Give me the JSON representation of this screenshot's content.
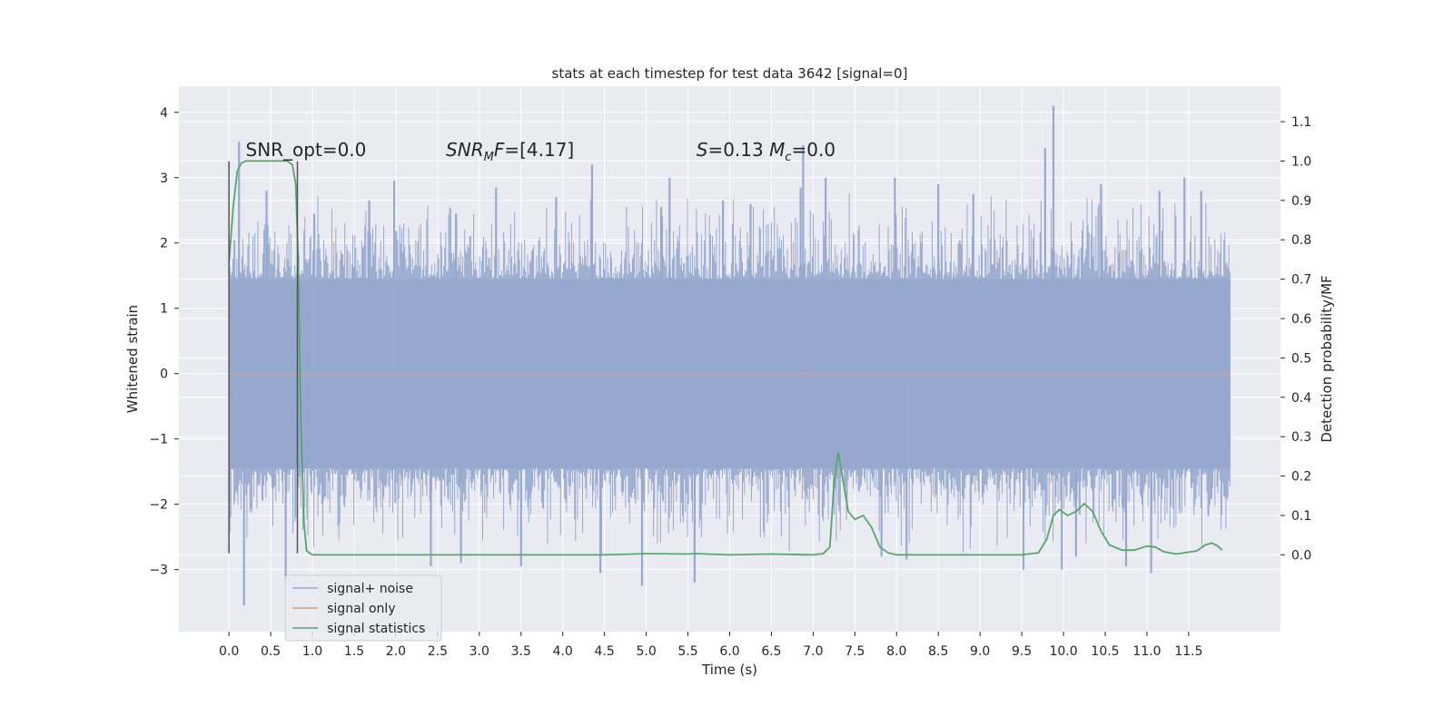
{
  "chart_data": {
    "type": "line",
    "title": "stats at each timestep for test data 3642 [signal=0]",
    "xlabel": "Time (s)",
    "ylabel_left": "Whitened strain",
    "ylabel_right": "Detection probability/MF",
    "xlim": [
      -0.6,
      12.6
    ],
    "ylim_left": [
      -3.95,
      4.4
    ],
    "ylim_right": [
      -0.195,
      1.19
    ],
    "x_ticks": [
      0.0,
      0.5,
      1.0,
      1.5,
      2.0,
      2.5,
      3.0,
      3.5,
      4.0,
      4.5,
      5.0,
      5.5,
      6.0,
      6.5,
      7.0,
      7.5,
      8.0,
      8.5,
      9.0,
      9.5,
      10.0,
      10.5,
      11.0,
      11.5
    ],
    "x_tick_labels": [
      "0.0",
      "0.5",
      "1.0",
      "1.5",
      "2.0",
      "2.5",
      "3.0",
      "3.5",
      "4.0",
      "4.5",
      "5.0",
      "5.5",
      "6.0",
      "6.5",
      "7.0",
      "7.5",
      "8.0",
      "8.5",
      "9.0",
      "9.5",
      "10.0",
      "10.5",
      "11.0",
      "11.5"
    ],
    "y_left_ticks": [
      -3,
      -2,
      -1,
      0,
      1,
      2,
      3,
      4
    ],
    "y_left_tick_labels": [
      "−3",
      "−2",
      "−1",
      "0",
      "1",
      "2",
      "3",
      "4"
    ],
    "y_right_ticks": [
      0.0,
      0.1,
      0.2,
      0.3,
      0.4,
      0.5,
      0.6,
      0.7,
      0.8,
      0.9,
      1.0,
      1.1
    ],
    "y_right_tick_labels": [
      "0.0",
      "0.1",
      "0.2",
      "0.3",
      "0.4",
      "0.5",
      "0.6",
      "0.7",
      "0.8",
      "0.9",
      "1.0",
      "1.1"
    ],
    "grid": true,
    "legend_position": "lower-left",
    "series": [
      {
        "name": "signal+ noise",
        "axis": "left",
        "color": "#97a9cf",
        "x_range": [
          0.0,
          12.0
        ],
        "envelope_abs": 1.45,
        "peaks": [
          [
            0.12,
            3.55
          ],
          [
            0.18,
            -3.55
          ],
          [
            0.68,
            -3.15
          ],
          [
            0.45,
            2.8
          ],
          [
            1.02,
            2.45
          ],
          [
            1.68,
            2.65
          ],
          [
            1.98,
            2.95
          ],
          [
            2.42,
            -2.95
          ],
          [
            2.72,
            2.45
          ],
          [
            2.78,
            -2.9
          ],
          [
            3.2,
            2.85
          ],
          [
            3.5,
            -2.95
          ],
          [
            3.92,
            2.7
          ],
          [
            4.35,
            3.2
          ],
          [
            4.45,
            -3.05
          ],
          [
            4.95,
            -3.25
          ],
          [
            5.18,
            2.55
          ],
          [
            5.28,
            3.0
          ],
          [
            5.58,
            -3.2
          ],
          [
            5.92,
            2.65
          ],
          [
            6.25,
            2.6
          ],
          [
            6.85,
            2.85
          ],
          [
            6.88,
            3.5
          ],
          [
            7.15,
            3.0
          ],
          [
            7.82,
            -2.8
          ],
          [
            7.98,
            3.0
          ],
          [
            8.12,
            -2.85
          ],
          [
            8.5,
            2.9
          ],
          [
            8.92,
            2.75
          ],
          [
            9.52,
            -3.0
          ],
          [
            9.78,
            3.45
          ],
          [
            9.88,
            4.1
          ],
          [
            9.98,
            -3.0
          ],
          [
            10.15,
            -2.8
          ],
          [
            10.45,
            2.9
          ],
          [
            10.75,
            -2.95
          ],
          [
            11.05,
            -3.05
          ],
          [
            11.15,
            2.8
          ],
          [
            11.45,
            3.0
          ],
          [
            11.65,
            2.8
          ]
        ]
      },
      {
        "name": "signal only",
        "axis": "left",
        "color": "#dd9c7a",
        "points": [
          [
            0.0,
            0.0
          ],
          [
            12.0,
            0.0
          ]
        ]
      },
      {
        "name": "signal statistics",
        "axis": "right",
        "color": "#55a868",
        "points": [
          [
            0.0,
            0.74
          ],
          [
            0.05,
            0.88
          ],
          [
            0.1,
            0.975
          ],
          [
            0.15,
            0.995
          ],
          [
            0.2,
            1.0
          ],
          [
            0.7,
            1.0
          ],
          [
            0.76,
            0.99
          ],
          [
            0.8,
            0.94
          ],
          [
            0.83,
            0.75
          ],
          [
            0.86,
            0.35
          ],
          [
            0.9,
            0.08
          ],
          [
            0.93,
            0.01
          ],
          [
            1.0,
            0.0
          ],
          [
            2.0,
            0.0
          ],
          [
            3.0,
            0.0
          ],
          [
            4.0,
            0.0
          ],
          [
            4.5,
            0.0
          ],
          [
            5.0,
            0.003
          ],
          [
            5.5,
            0.002
          ],
          [
            5.6,
            0.003
          ],
          [
            6.0,
            0.0
          ],
          [
            6.5,
            0.002
          ],
          [
            7.0,
            0.0
          ],
          [
            7.12,
            0.003
          ],
          [
            7.2,
            0.02
          ],
          [
            7.25,
            0.18
          ],
          [
            7.3,
            0.26
          ],
          [
            7.35,
            0.2
          ],
          [
            7.42,
            0.11
          ],
          [
            7.5,
            0.09
          ],
          [
            7.6,
            0.1
          ],
          [
            7.7,
            0.07
          ],
          [
            7.8,
            0.02
          ],
          [
            7.9,
            0.005
          ],
          [
            8.0,
            0.0
          ],
          [
            9.0,
            0.0
          ],
          [
            9.5,
            0.0
          ],
          [
            9.7,
            0.005
          ],
          [
            9.8,
            0.04
          ],
          [
            9.88,
            0.1
          ],
          [
            9.95,
            0.115
          ],
          [
            10.05,
            0.1
          ],
          [
            10.15,
            0.11
          ],
          [
            10.25,
            0.13
          ],
          [
            10.35,
            0.11
          ],
          [
            10.45,
            0.06
          ],
          [
            10.55,
            0.025
          ],
          [
            10.7,
            0.012
          ],
          [
            10.85,
            0.012
          ],
          [
            11.0,
            0.022
          ],
          [
            11.1,
            0.02
          ],
          [
            11.2,
            0.008
          ],
          [
            11.35,
            0.002
          ],
          [
            11.6,
            0.01
          ],
          [
            11.7,
            0.025
          ],
          [
            11.78,
            0.03
          ],
          [
            11.85,
            0.022
          ],
          [
            11.9,
            0.012
          ]
        ]
      }
    ],
    "vertical_markers": [
      {
        "x": 0.0,
        "y_from": -2.75,
        "y_to": 3.25,
        "color": "#555555"
      },
      {
        "x": 0.82,
        "y_from": -2.75,
        "y_to": 3.25,
        "color": "#555555"
      }
    ],
    "annotations": [
      {
        "id": "snr-opt",
        "text": "SNR_opt=0.0",
        "x": 0.2,
        "y": 3.33
      },
      {
        "id": "snr-mf",
        "prefix": "SNR",
        "subscript": "M",
        "suffix": "F=[4.17]",
        "x": 2.6,
        "y": 3.33
      },
      {
        "id": "s-mc",
        "prefix": "S",
        "text_a": "=0.13   ",
        "m": "M",
        "subscript": "c",
        "suffix": "=0.0",
        "x": 5.6,
        "y": 3.33
      }
    ],
    "style": {
      "background": "#eaeaf2",
      "grid_color": "#ffffff",
      "text_color": "#262626"
    }
  }
}
